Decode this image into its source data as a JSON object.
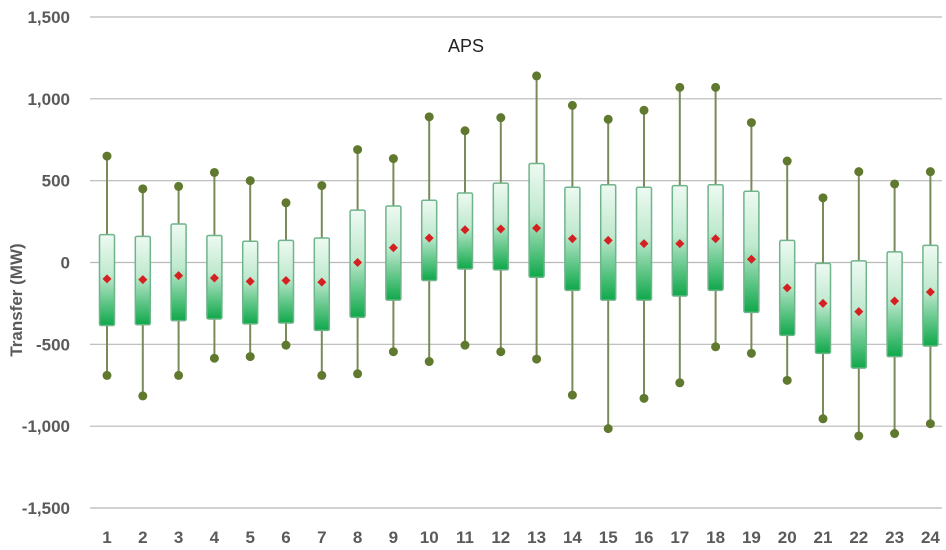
{
  "chart_data": {
    "type": "box",
    "title": "APS",
    "ylabel": "Transfer (MW)",
    "xlabel": "",
    "ylim": [
      -1500,
      1500
    ],
    "yticks": [
      1500,
      1000,
      500,
      0,
      -500,
      -1000,
      -1500
    ],
    "ytick_labels": [
      "1,500",
      "1,000",
      "500",
      "0",
      "-500",
      "-1,000",
      "-1,500"
    ],
    "grid": true,
    "categories": [
      "1",
      "2",
      "3",
      "4",
      "5",
      "6",
      "7",
      "8",
      "9",
      "10",
      "11",
      "12",
      "13",
      "14",
      "15",
      "16",
      "17",
      "18",
      "19",
      "20",
      "21",
      "22",
      "23",
      "24"
    ],
    "series": [
      {
        "max": [
          650,
          450,
          465,
          550,
          500,
          365,
          470,
          690,
          635,
          890,
          805,
          885,
          1140,
          960,
          875,
          930,
          1070,
          1070,
          855,
          620,
          395,
          555,
          480,
          555
        ],
        "q3": [
          170,
          160,
          235,
          165,
          130,
          135,
          150,
          320,
          345,
          380,
          425,
          485,
          605,
          460,
          475,
          460,
          470,
          475,
          435,
          135,
          -5,
          10,
          65,
          105
        ],
        "mean": [
          -100,
          -105,
          -80,
          -95,
          -115,
          -110,
          -120,
          0,
          90,
          150,
          200,
          205,
          210,
          145,
          135,
          115,
          115,
          145,
          20,
          -155,
          -250,
          -300,
          -235,
          -180
        ],
        "q1": [
          -385,
          -380,
          -355,
          -345,
          -375,
          -370,
          -415,
          -335,
          -230,
          -110,
          -40,
          -45,
          -90,
          -170,
          -230,
          -230,
          -205,
          -170,
          -305,
          -445,
          -555,
          -645,
          -575,
          -510
        ],
        "min": [
          -690,
          -815,
          -690,
          -585,
          -575,
          -505,
          -690,
          -680,
          -545,
          -605,
          -505,
          -545,
          -590,
          -810,
          -1015,
          -830,
          -735,
          -515,
          -555,
          -720,
          -955,
          -1060,
          -1045,
          -985
        ]
      }
    ],
    "colors": {
      "box_top": "#eefaf2",
      "box_bottom": "#0fa84a",
      "box_border": "#6fb48a",
      "whisker": "#7a8a5a",
      "endpoint": "#5f7a2e",
      "mean_marker": "#d42020",
      "grid": "#b8b8b8"
    }
  }
}
